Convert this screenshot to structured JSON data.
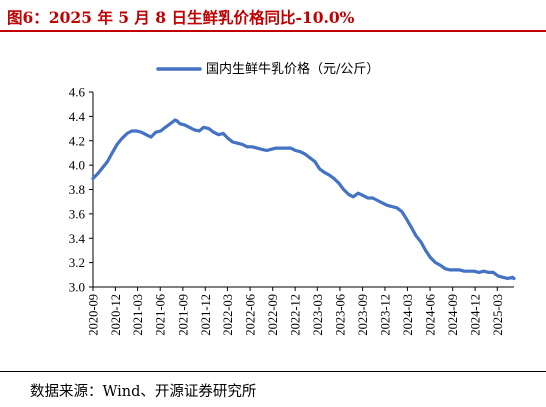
{
  "header": {
    "title": "图6：2025 年 5 月 8 日生鲜乳价格同比-10.0%"
  },
  "footer": {
    "source": "数据来源：Wind、开源证券研究所"
  },
  "chart_data": {
    "type": "line",
    "title": "图6：2025 年 5 月 8 日生鲜乳价格同比-10.0%",
    "xlabel": "",
    "ylabel": "",
    "ylim": [
      3.0,
      4.6
    ],
    "yticks": [
      "3.0",
      "3.2",
      "3.4",
      "3.6",
      "3.8",
      "4.0",
      "4.2",
      "4.4",
      "4.6"
    ],
    "xlim": [
      "2020-09-01",
      "2025-05-08"
    ],
    "xticks": [
      "2020-09",
      "2020-12",
      "2021-03",
      "2021-06",
      "2021-09",
      "2021-12",
      "2022-03",
      "2022-06",
      "2022-09",
      "2022-12",
      "2023-03",
      "2023-06",
      "2023-09",
      "2023-12",
      "2024-03",
      "2024-06",
      "2024-09",
      "2024-12",
      "2025-03"
    ],
    "legend_position": "top-center",
    "grid": false,
    "colors": {
      "line": "#4472C4",
      "title": "#C00000"
    },
    "series": [
      {
        "name": "国内生鲜牛乳价格（元/公斤）",
        "x": [
          "2020-09-01",
          "2020-09-20",
          "2020-10-10",
          "2020-10-30",
          "2020-11-18",
          "2020-12-08",
          "2020-12-28",
          "2021-01-18",
          "2021-02-05",
          "2021-02-25",
          "2021-03-16",
          "2021-04-05",
          "2021-04-24",
          "2021-05-14",
          "2021-06-03",
          "2021-06-22",
          "2021-07-12",
          "2021-08-01",
          "2021-08-10",
          "2021-08-20",
          "2021-09-08",
          "2021-09-27",
          "2021-10-17",
          "2021-11-06",
          "2021-11-25",
          "2021-12-15",
          "2022-01-04",
          "2022-01-24",
          "2022-02-12",
          "2022-03-03",
          "2022-03-22",
          "2022-04-11",
          "2022-05-01",
          "2022-05-20",
          "2022-06-09",
          "2022-06-29",
          "2022-07-18",
          "2022-08-07",
          "2022-08-26",
          "2022-09-15",
          "2022-10-05",
          "2022-10-24",
          "2022-11-13",
          "2022-12-02",
          "2022-12-22",
          "2023-01-11",
          "2023-01-30",
          "2023-02-19",
          "2023-03-10",
          "2023-03-30",
          "2023-04-18",
          "2023-05-08",
          "2023-05-28",
          "2023-06-16",
          "2023-07-06",
          "2023-07-25",
          "2023-08-14",
          "2023-09-03",
          "2023-09-22",
          "2023-10-12",
          "2023-11-01",
          "2023-11-20",
          "2023-12-10",
          "2023-12-29",
          "2024-01-18",
          "2024-02-07",
          "2024-02-26",
          "2024-03-17",
          "2024-04-05",
          "2024-04-25",
          "2024-05-14",
          "2024-06-03",
          "2024-06-23",
          "2024-07-12",
          "2024-08-01",
          "2024-08-21",
          "2024-09-09",
          "2024-09-29",
          "2024-10-18",
          "2024-11-07",
          "2024-11-27",
          "2024-12-16",
          "2025-01-05",
          "2025-01-25",
          "2025-02-13",
          "2025-03-05",
          "2025-03-24",
          "2025-04-13",
          "2025-05-02",
          "2025-05-08"
        ],
        "values": [
          3.89,
          3.93,
          3.98,
          4.03,
          4.1,
          4.17,
          4.22,
          4.26,
          4.28,
          4.28,
          4.27,
          4.25,
          4.23,
          4.27,
          4.28,
          4.31,
          4.34,
          4.37,
          4.36,
          4.34,
          4.33,
          4.31,
          4.29,
          4.28,
          4.31,
          4.3,
          4.27,
          4.25,
          4.26,
          4.22,
          4.19,
          4.18,
          4.17,
          4.15,
          4.15,
          4.14,
          4.13,
          4.12,
          4.13,
          4.14,
          4.14,
          4.14,
          4.14,
          4.12,
          4.11,
          4.09,
          4.06,
          4.03,
          3.97,
          3.94,
          3.92,
          3.89,
          3.85,
          3.8,
          3.76,
          3.74,
          3.77,
          3.75,
          3.73,
          3.73,
          3.71,
          3.69,
          3.67,
          3.66,
          3.65,
          3.62,
          3.56,
          3.49,
          3.42,
          3.37,
          3.3,
          3.24,
          3.2,
          3.18,
          3.15,
          3.14,
          3.14,
          3.14,
          3.13,
          3.13,
          3.13,
          3.12,
          3.13,
          3.12,
          3.12,
          3.09,
          3.08,
          3.07,
          3.08,
          3.07
        ]
      }
    ]
  }
}
